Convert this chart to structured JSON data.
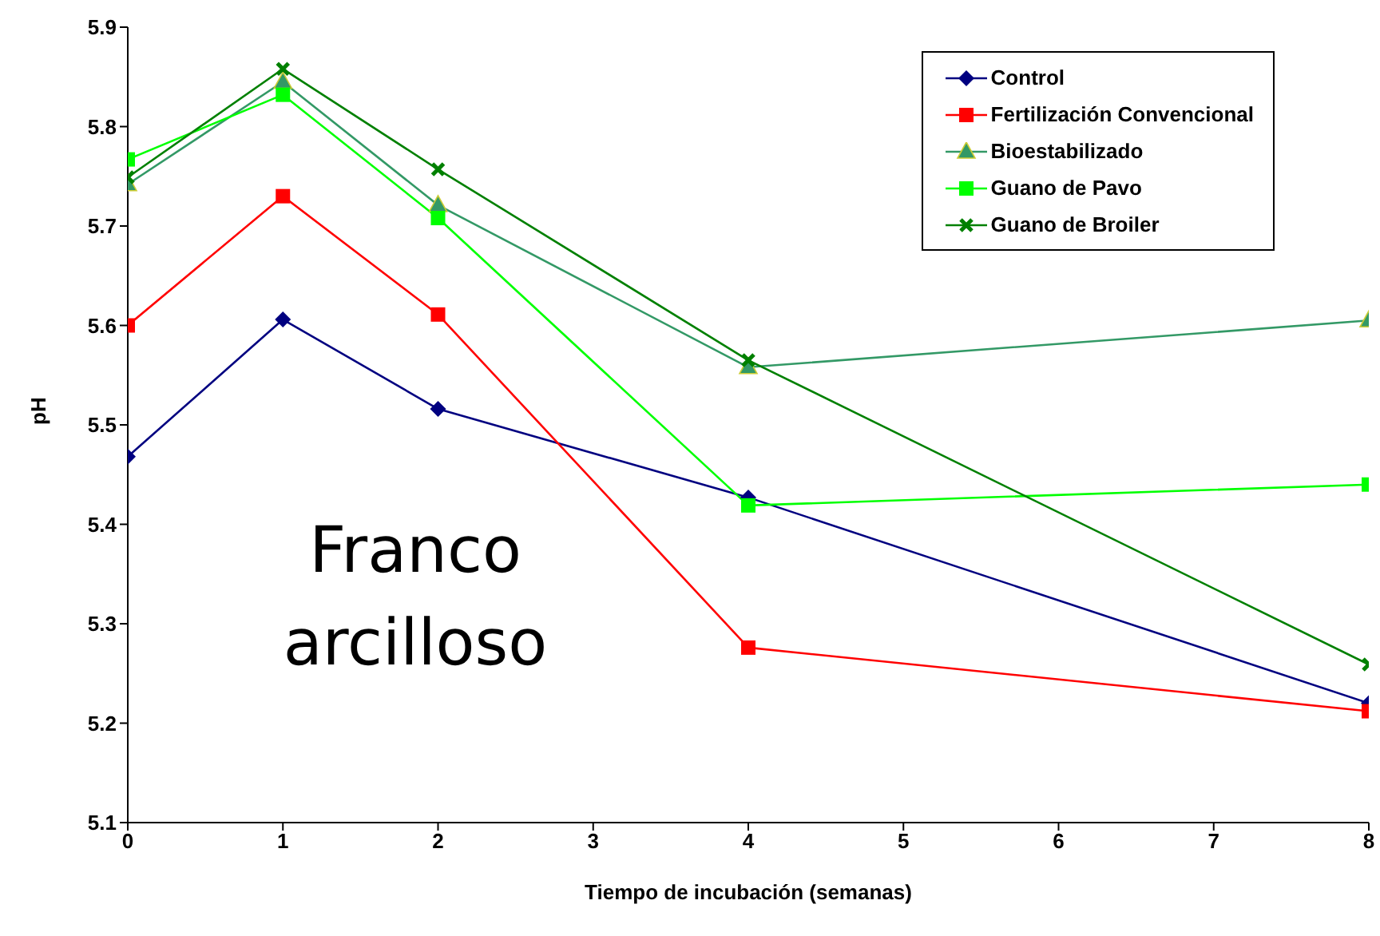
{
  "chart_data": {
    "type": "line",
    "xlabel": "Tiempo de incubación (semanas)",
    "ylabel": "pH",
    "x": [
      0,
      1,
      2,
      4,
      8
    ],
    "xlim": [
      0,
      8
    ],
    "xticks": [
      0,
      1,
      2,
      3,
      4,
      5,
      6,
      7,
      8
    ],
    "ylim": [
      5.1,
      5.9
    ],
    "yticks": [
      5.1,
      5.2,
      5.3,
      5.4,
      5.5,
      5.6,
      5.7,
      5.8,
      5.9
    ],
    "grid": false,
    "legend": "top right",
    "annotations": [
      "Franco arcilloso"
    ],
    "series": [
      {
        "name": "Control",
        "color": "#000080",
        "marker": "diamond",
        "values": [
          5.468,
          5.606,
          5.516,
          5.427,
          5.22
        ]
      },
      {
        "name": "Fertilización Convencional",
        "color": "#ff0000",
        "marker": "square",
        "values": [
          5.6,
          5.73,
          5.611,
          5.276,
          5.212
        ]
      },
      {
        "name": "Bioestabilizado",
        "color": "#339966",
        "marker": "triangle",
        "values": [
          5.742,
          5.845,
          5.721,
          5.558,
          5.605
        ]
      },
      {
        "name": "Guano de Pavo",
        "color": "#00ff00",
        "marker": "square",
        "values": [
          5.767,
          5.832,
          5.708,
          5.419,
          5.44
        ]
      },
      {
        "name": "Guano de Broiler",
        "color": "#008000",
        "marker": "cross",
        "values": [
          5.749,
          5.858,
          5.757,
          5.565,
          5.259
        ]
      }
    ]
  }
}
